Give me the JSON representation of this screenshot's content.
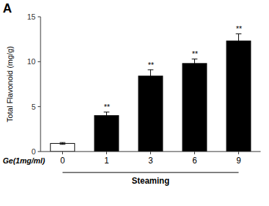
{
  "chart_data": {
    "type": "bar",
    "categories": [
      "0",
      "1",
      "3",
      "6",
      "9"
    ],
    "values": [
      0.9,
      4.0,
      8.4,
      9.8,
      12.3
    ],
    "errors": [
      0.1,
      0.4,
      0.7,
      0.5,
      0.8
    ],
    "colors": [
      "white",
      "black",
      "black",
      "black",
      "black"
    ],
    "significance": [
      null,
      "**",
      "**",
      "**",
      "**"
    ],
    "ylabel": "Total Flavonoid (mg/g)",
    "ge_label": "Ge(1mg/ml)",
    "steaming_label": "Steaming",
    "panel_label": "A",
    "ylim": [
      0,
      15
    ],
    "yticks": [
      0,
      5,
      10,
      15
    ],
    "grid": false
  }
}
